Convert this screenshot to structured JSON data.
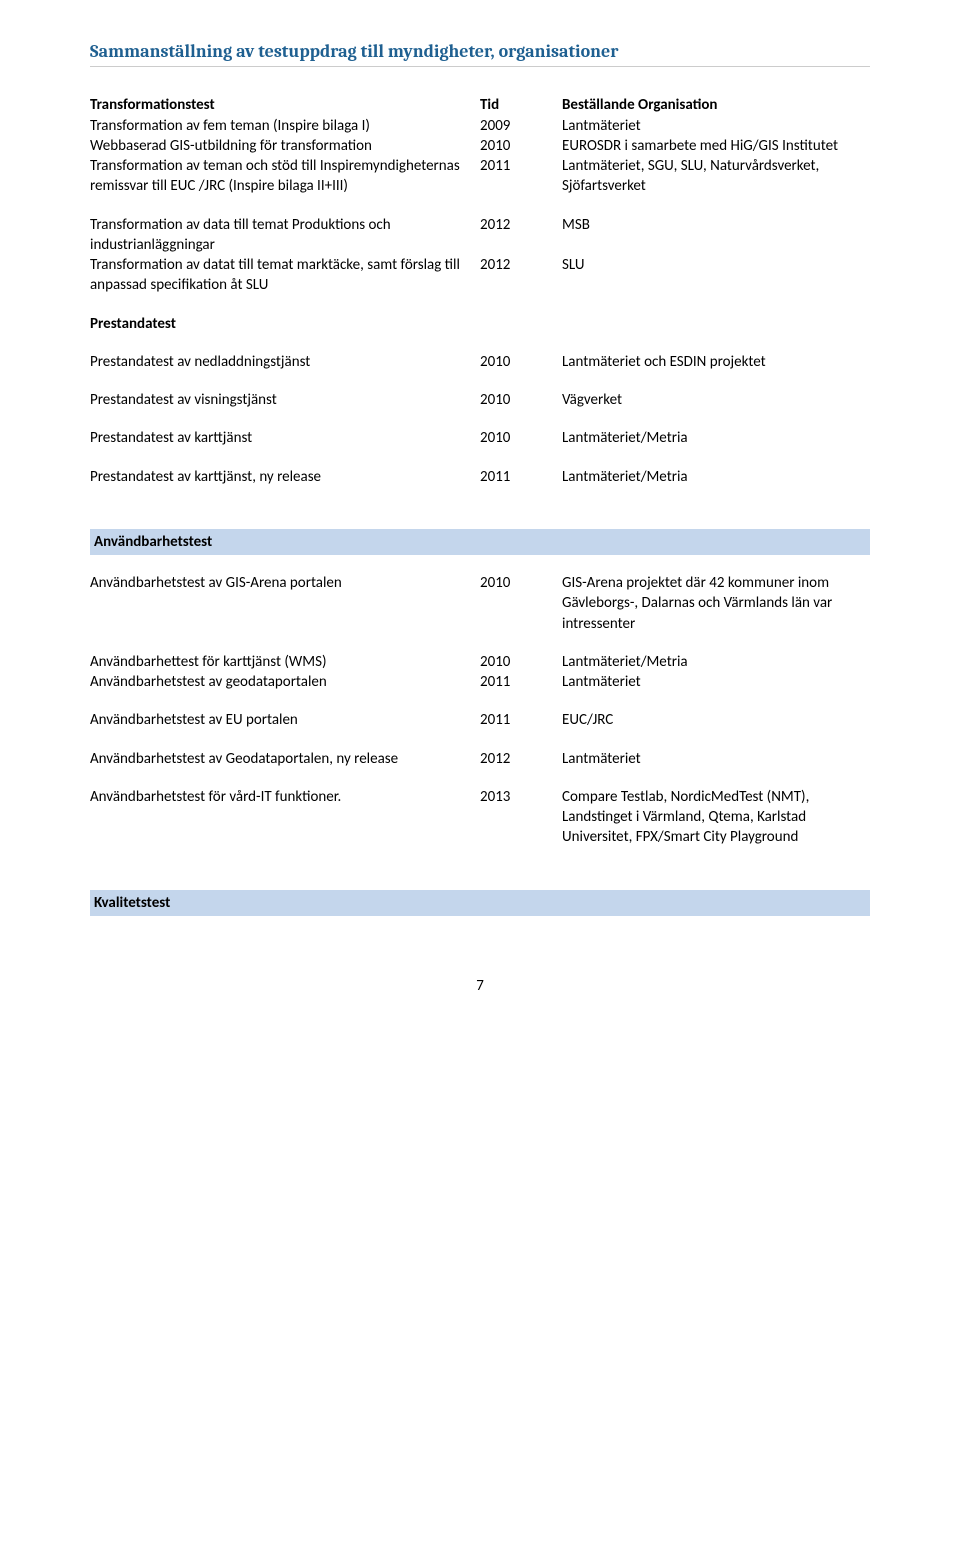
{
  "heading": "Sammanställning av testuppdrag till myndigheter, organisationer",
  "table": {
    "header": {
      "desc": "Transformationstest",
      "year": "Tid",
      "org": "Beställande Organisation"
    },
    "block1": [
      {
        "desc": "Transformation av fem teman (Inspire bilaga I)",
        "year": "2009",
        "org": "Lantmäteriet"
      },
      {
        "desc": "Webbaserad GIS-utbildning för transformation",
        "year": "2010",
        "org": "EUROSDR i samarbete med HiG/GIS Institutet"
      },
      {
        "desc": "Transformation av teman och stöd till Inspiremyndigheternas remissvar till EUC /JRC (Inspire bilaga II+III)",
        "year": "2011",
        "org": "Lantmäteriet, SGU, SLU, Naturvårdsverket, Sjöfartsverket"
      }
    ],
    "block2": [
      {
        "desc": "Transformation av data till temat Produktions och industrianläggningar",
        "year": "2012",
        "org": "MSB"
      },
      {
        "desc": "Transformation av datat till temat marktäcke, samt förslag till anpassad specifikation åt SLU",
        "year": "2012",
        "org": "SLU"
      }
    ],
    "prestanda_header": "Prestandatest",
    "prestanda_rows": [
      {
        "desc": "Prestandatest av nedladdningstjänst",
        "year": "2010",
        "org": "Lantmäteriet och ESDIN projektet"
      },
      {
        "desc": "Prestandatest av visningstjänst",
        "year": "2010",
        "org": "Vägverket"
      },
      {
        "desc": "Prestandatest av karttjänst",
        "year": "2010",
        "org": "Lantmäteriet/Metria"
      },
      {
        "desc": "Prestandatest av karttjänst, ny release",
        "year": "2011",
        "org": "Lantmäteriet/Metria"
      }
    ],
    "anvandbar_header": "Användbarhetstest",
    "anvandbar_block1": [
      {
        "desc": "Användbarhetstest av GIS-Arena portalen",
        "year": "2010",
        "org": "GIS-Arena projektet där 42 kommuner inom Gävleborgs-, Dalarnas och Värmlands län var intressenter"
      }
    ],
    "anvandbar_block2": [
      {
        "desc": "Användbarhettest för karttjänst (WMS)",
        "year": "2010",
        "org": "Lantmäteriet/Metria"
      },
      {
        "desc": "Användbarhetstest av geodataportalen",
        "year": "2011",
        "org": "Lantmäteriet"
      }
    ],
    "anvandbar_block3": [
      {
        "desc": "Användbarhetstest av EU portalen",
        "year": "2011",
        "org": "EUC/JRC"
      }
    ],
    "anvandbar_block4": [
      {
        "desc": "Användbarhetstest av Geodataportalen, ny release",
        "year": "2012",
        "org": "Lantmäteriet"
      }
    ],
    "anvandbar_block5": [
      {
        "desc": "Användbarhetstest för vård-IT funktioner.",
        "year": "2013",
        "org": "Compare Testlab, NordicMedTest (NMT), Landstinget i Värmland, Qtema, Karlstad Universitet, FPX/Smart City Playground"
      }
    ],
    "kvalitet_header": "Kvalitetstest"
  },
  "page_number": "7"
}
